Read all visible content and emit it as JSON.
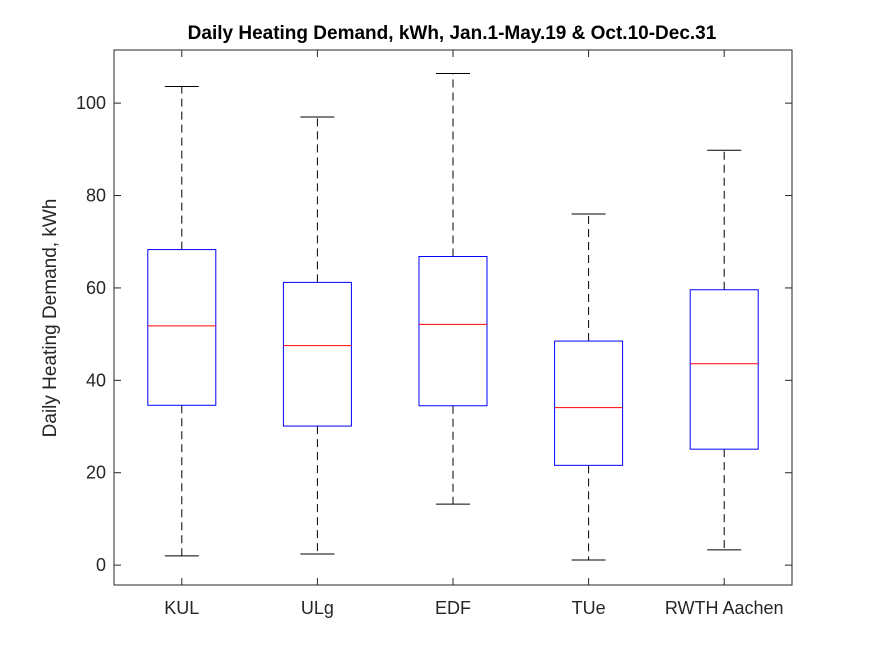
{
  "chart_data": {
    "type": "box",
    "title": "Daily Heating Demand, kWh, Jan.1-May.19 & Oct.10-Dec.31",
    "xlabel": "",
    "ylabel": "Daily Heating Demand, kWh",
    "categories": [
      "KUL",
      "ULg",
      "EDF",
      "TUe",
      "RWTH Aachen"
    ],
    "boxes": [
      {
        "min": 2,
        "q1": 34.6,
        "median": 51.8,
        "q3": 68.3,
        "max": 103.6
      },
      {
        "min": 2.4,
        "q1": 30.1,
        "median": 47.5,
        "q3": 61.2,
        "max": 97
      },
      {
        "min": 13.2,
        "q1": 34.5,
        "median": 52.1,
        "q3": 66.8,
        "max": 106.4
      },
      {
        "min": 1.1,
        "q1": 21.6,
        "median": 34.1,
        "q3": 48.5,
        "max": 76
      },
      {
        "min": 3.3,
        "q1": 25.1,
        "median": 43.6,
        "q3": 59.6,
        "max": 89.8
      }
    ],
    "ylim": [
      -4.3,
      111.5
    ],
    "yticks": [
      0,
      20,
      40,
      60,
      80,
      100
    ],
    "ytick_labels": [
      "0",
      "20",
      "40",
      "60",
      "80",
      "100"
    ],
    "grid": false,
    "colors": {
      "box": "#0000ff",
      "median": "#ff0000",
      "whisker": "#000000",
      "axis": "#262626"
    }
  }
}
